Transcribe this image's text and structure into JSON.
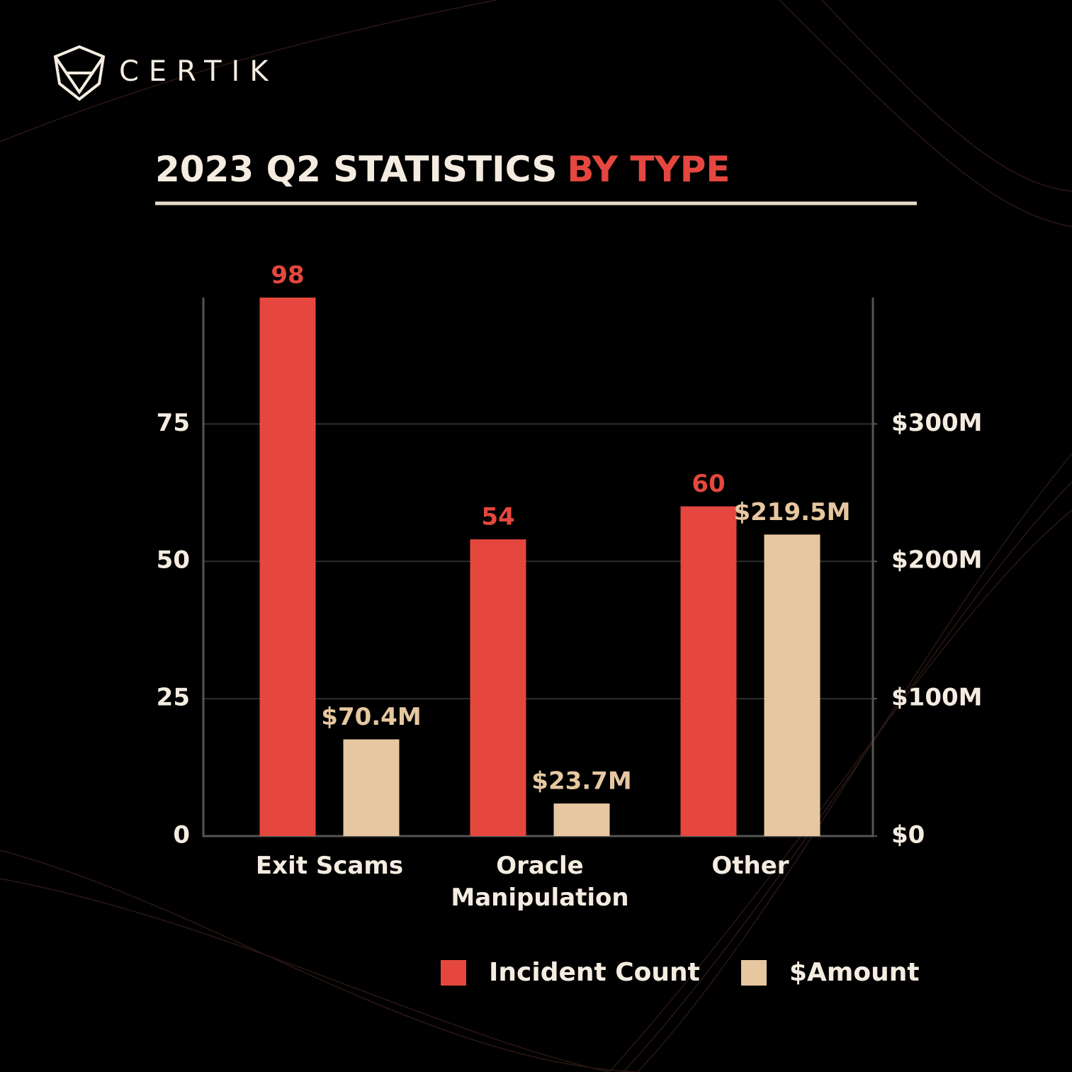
{
  "brand": "CERTIK",
  "chart_data": {
    "type": "bar",
    "title": "2023 Q2 STATISTICS",
    "title_highlight": "BY TYPE",
    "categories": [
      "Exit Scams",
      "Oracle Manipulation",
      "Other"
    ],
    "series": [
      {
        "name": "Incident Count",
        "color": "#e5473f",
        "values": [
          98,
          54,
          60
        ]
      },
      {
        "name": "$Amount",
        "color": "#e6c7a0",
        "axis": "y2",
        "values": [
          70.4,
          23.7,
          219.5
        ],
        "value_labels": [
          "$70.4M",
          "$23.7M",
          "$219.5M"
        ]
      }
    ],
    "ylim": [
      0,
      98
    ],
    "yticks": [
      0,
      25,
      50,
      75
    ],
    "y2lim": [
      0,
      392
    ],
    "y2ticks": [
      {
        "value": 0,
        "label": "$0"
      },
      {
        "value": 100,
        "label": "$100M"
      },
      {
        "value": 200,
        "label": "$200M"
      },
      {
        "value": 300,
        "label": "$300M"
      }
    ],
    "grid": true,
    "legend": "bottom"
  }
}
